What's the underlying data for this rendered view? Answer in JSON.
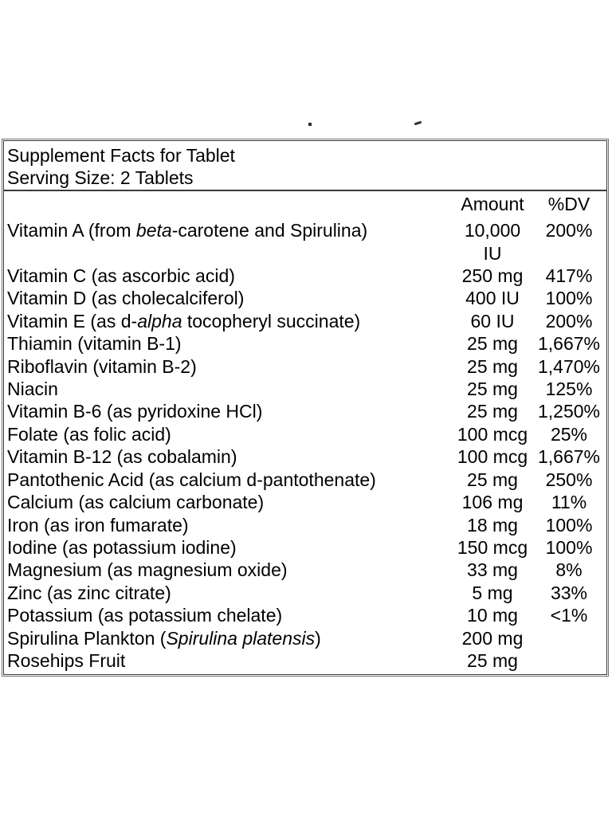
{
  "page": {
    "background": "#ffffff",
    "text_color": "#000000",
    "border_outer_color": "#6f6f6f",
    "border_inner_color": "#3a3a3a"
  },
  "table": {
    "header": {
      "title": "Supplement Facts for Tablet",
      "serving_size": "Serving Size: 2 Tablets"
    },
    "columns": {
      "amount_label": "Amount",
      "dv_label": "%DV"
    },
    "rows": [
      {
        "name": "Vitamin A (from *beta*-carotene and Spirulina)",
        "amount": "10,000 IU",
        "dv": "200%"
      },
      {
        "name": "Vitamin C (as ascorbic acid)",
        "amount": "250 mg",
        "dv": "417%"
      },
      {
        "name": "Vitamin D (as cholecalciferol)",
        "amount": "400 IU",
        "dv": "100%"
      },
      {
        "name": "Vitamin E (as d-*alpha* tocopheryl succinate)",
        "amount": "60 IU",
        "dv": "200%"
      },
      {
        "name": "Thiamin (vitamin B-1)",
        "amount": "25 mg",
        "dv": "1,667%"
      },
      {
        "name": "Riboflavin (vitamin B-2)",
        "amount": "25 mg",
        "dv": "1,470%"
      },
      {
        "name": "Niacin",
        "amount": "25 mg",
        "dv": "125%"
      },
      {
        "name": "Vitamin B-6 (as pyridoxine HCl)",
        "amount": "25 mg",
        "dv": "1,250%"
      },
      {
        "name": "Folate (as folic acid)",
        "amount": "100 mcg",
        "dv": "25%"
      },
      {
        "name": "Vitamin B-12 (as cobalamin)",
        "amount": "100 mcg",
        "dv": "1,667%"
      },
      {
        "name": "Pantothenic Acid (as calcium d-pantothenate)",
        "amount": "25 mg",
        "dv": "250%"
      },
      {
        "name": "Calcium (as calcium carbonate)",
        "amount": "106 mg",
        "dv": "11%"
      },
      {
        "name": "Iron (as iron fumarate)",
        "amount": "18 mg",
        "dv": "100%"
      },
      {
        "name": "Iodine (as potassium iodine)",
        "amount": "150 mcg",
        "dv": "100%"
      },
      {
        "name": "Magnesium (as magnesium oxide)",
        "amount": "33 mg",
        "dv": "8%"
      },
      {
        "name": "Zinc (as zinc citrate)",
        "amount": "5 mg",
        "dv": "33%"
      },
      {
        "name": "Potassium (as potassium chelate)",
        "amount": "10 mg",
        "dv": "<1%"
      },
      {
        "name": "Spirulina Plankton (*Spirulina platensis*)",
        "amount": "200 mg",
        "dv": ""
      },
      {
        "name": "Rosehips Fruit",
        "amount": "25 mg",
        "dv": ""
      }
    ]
  }
}
